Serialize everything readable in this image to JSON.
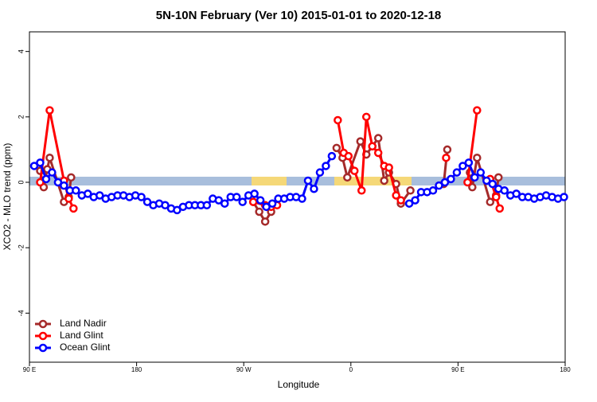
{
  "chart_data": {
    "type": "line",
    "title": "5N-10N February (Ver 10)   2015-01-01 to 2020-12-18",
    "x_label": "Longitude",
    "y_label": "XCO2 - MLO trend (ppm)",
    "xlim": [
      90,
      540
    ],
    "xticks": [
      {
        "value": 90,
        "label": "90 E"
      },
      {
        "value": 180,
        "label": "180"
      },
      {
        "value": 270,
        "label": "90 W"
      },
      {
        "value": 360,
        "label": "0"
      },
      {
        "value": 450,
        "label": "90 E"
      },
      {
        "value": 540,
        "label": "180"
      }
    ],
    "ylim": [
      -5.5,
      4.6
    ],
    "yticks": [
      -4,
      -2,
      0,
      2,
      4
    ],
    "legend": "bottom-left",
    "series": [
      {
        "name": "Land Nadir",
        "color": "#a52a2a",
        "x": [
          99,
          102,
          105,
          107,
          119,
          123,
          125,
          200,
          278,
          283,
          288,
          293,
          320,
          348,
          353,
          357,
          368,
          373,
          378,
          383,
          388,
          392,
          398,
          402,
          410,
          420,
          438,
          441,
          450,
          460,
          462,
          466,
          477,
          482,
          484
        ],
        "values": [
          0.35,
          -0.15,
          0.4,
          0.75,
          -0.6,
          -0.45,
          0.15,
          null,
          -0.6,
          -0.9,
          -1.2,
          -0.9,
          null,
          1.05,
          0.75,
          0.15,
          1.25,
          0.85,
          1.1,
          1.35,
          0.05,
          0.3,
          -0.05,
          -0.65,
          -0.25,
          null,
          -0.05,
          1.0,
          null,
          0.3,
          -0.15,
          0.75,
          -0.6,
          -0.4,
          0.15
        ]
      },
      {
        "name": "Land Glint",
        "color": "#ff0000",
        "x": [
          99,
          107,
          119,
          123,
          127,
          200,
          278,
          288,
          293,
          298,
          320,
          349,
          354,
          358,
          363,
          369,
          373,
          378,
          383,
          388,
          392,
          398,
          402,
          420,
          440,
          450,
          458,
          466,
          470,
          477,
          482,
          485
        ],
        "values": [
          0.0,
          2.2,
          0.05,
          -0.5,
          -0.8,
          null,
          -0.6,
          -0.7,
          -0.75,
          -0.7,
          null,
          1.9,
          0.9,
          0.8,
          0.35,
          -0.25,
          2.0,
          1.1,
          0.9,
          0.5,
          0.45,
          -0.4,
          -0.55,
          null,
          0.75,
          null,
          0.0,
          2.2,
          null,
          0.1,
          -0.45,
          -0.8
        ]
      },
      {
        "name": "Ocean Glint",
        "color": "#0000ff",
        "x": [
          94,
          99,
          104,
          109,
          114,
          119,
          124,
          129,
          134,
          139,
          144,
          149,
          154,
          159,
          164,
          169,
          174,
          179,
          184,
          189,
          194,
          199,
          204,
          209,
          214,
          219,
          224,
          229,
          234,
          239,
          244,
          249,
          254,
          259,
          264,
          269,
          274,
          279,
          284,
          289,
          294,
          299,
          304,
          309,
          314,
          319,
          324,
          329,
          334,
          339,
          344,
          380,
          409,
          414,
          419,
          424,
          429,
          434,
          439,
          444,
          449,
          454,
          459,
          464,
          469,
          474,
          479,
          484,
          489,
          494,
          499,
          504,
          509,
          514,
          519,
          524,
          529,
          534,
          539
        ],
        "values": [
          0.5,
          0.6,
          0.1,
          0.3,
          0.0,
          -0.1,
          -0.25,
          -0.25,
          -0.4,
          -0.35,
          -0.45,
          -0.4,
          -0.5,
          -0.45,
          -0.4,
          -0.4,
          -0.45,
          -0.4,
          -0.45,
          -0.6,
          -0.7,
          -0.65,
          -0.7,
          -0.8,
          -0.85,
          -0.75,
          -0.7,
          -0.7,
          -0.7,
          -0.7,
          -0.5,
          -0.55,
          -0.65,
          -0.45,
          -0.45,
          -0.6,
          -0.4,
          -0.35,
          -0.55,
          -0.75,
          -0.65,
          -0.5,
          -0.5,
          -0.45,
          -0.45,
          -0.5,
          0.05,
          -0.2,
          0.3,
          0.5,
          0.8,
          null,
          -0.65,
          -0.55,
          -0.3,
          -0.3,
          -0.25,
          -0.1,
          0.0,
          0.1,
          0.3,
          0.5,
          0.6,
          0.15,
          0.3,
          0.05,
          -0.05,
          -0.2,
          -0.25,
          -0.4,
          -0.35,
          -0.45,
          -0.45,
          -0.5,
          -0.45,
          -0.4,
          -0.45,
          -0.5,
          -0.45
        ]
      }
    ]
  }
}
